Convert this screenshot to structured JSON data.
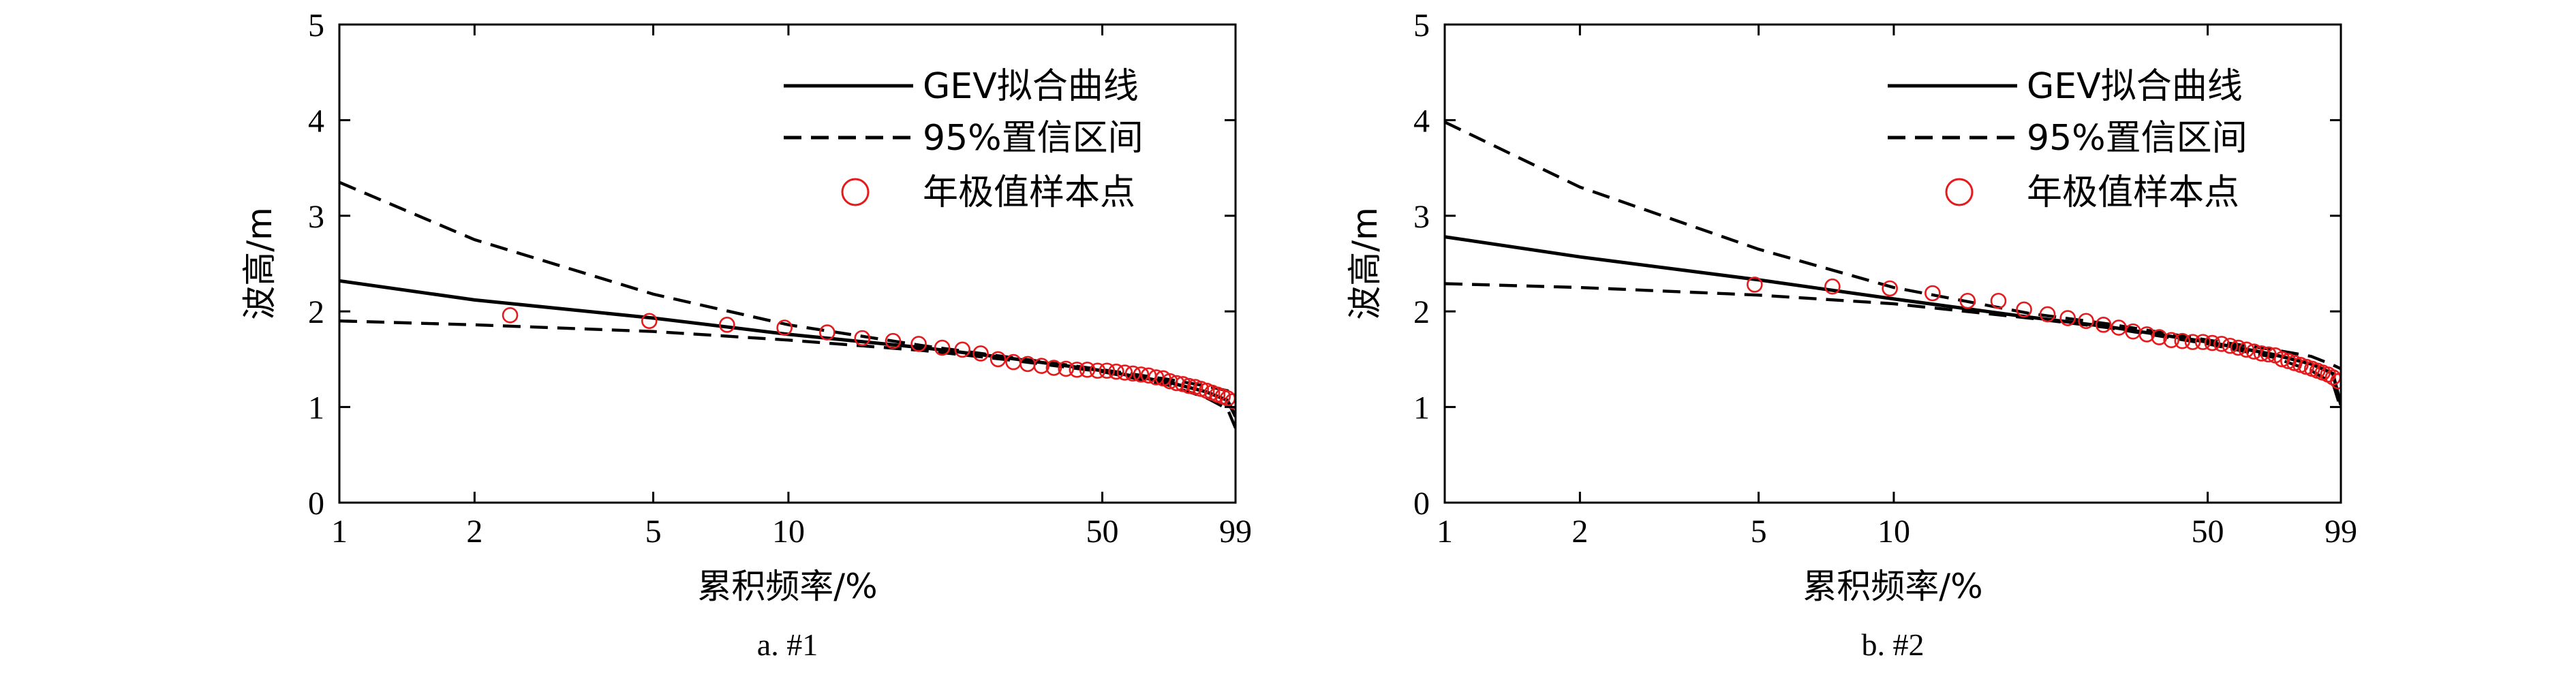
{
  "colors": {
    "axis": "#000000",
    "fit_line": "#000000",
    "ci_line": "#000000",
    "sample_marker": "#e41a1c"
  },
  "chart_data": [
    {
      "type": "line",
      "x_scale": "log",
      "caption": "a. #1",
      "xlabel": "累积频率/%",
      "ylabel": "波高/m",
      "xlim": [
        1,
        99
      ],
      "ylim": [
        0,
        5
      ],
      "xticks": [
        1,
        2,
        5,
        10,
        50,
        99
      ],
      "xtick_labels": [
        "1",
        "2",
        "5",
        "10",
        "50",
        "99"
      ],
      "yticks": [
        0,
        1,
        2,
        3,
        4,
        5
      ],
      "ytick_labels": [
        "0",
        "1",
        "2",
        "3",
        "4",
        "5"
      ],
      "grid": false,
      "legend_position": "top-right",
      "series": [
        {
          "name": "GEV拟合曲线",
          "style": "solid",
          "color": "#000000",
          "x": [
            1,
            2,
            5,
            10,
            20,
            30,
            50,
            70,
            85,
            95,
            99
          ],
          "y": [
            2.32,
            2.12,
            1.93,
            1.76,
            1.62,
            1.52,
            1.38,
            1.26,
            1.16,
            1.07,
            0.9
          ]
        },
        {
          "name": "95%置信区间",
          "style": "dashed",
          "color": "#000000",
          "x": [
            1,
            2,
            5,
            10,
            20,
            30,
            50,
            70,
            85,
            95,
            99
          ],
          "y": [
            3.35,
            2.75,
            2.18,
            1.86,
            1.64,
            1.53,
            1.39,
            1.29,
            1.22,
            1.17,
            1.1
          ]
        },
        {
          "name": "",
          "style": "dashed",
          "color": "#000000",
          "x": [
            1,
            2,
            5,
            10,
            20,
            30,
            50,
            70,
            85,
            95,
            99
          ],
          "y": [
            1.9,
            1.86,
            1.79,
            1.7,
            1.59,
            1.5,
            1.37,
            1.23,
            1.1,
            0.98,
            0.78
          ]
        },
        {
          "name": "年极值样本点",
          "style": "marker",
          "color": "#e41a1c",
          "x": [
            2.4,
            4.9,
            7.3,
            9.8,
            12.2,
            14.6,
            17.1,
            19.5,
            22,
            24.4,
            26.8,
            29.3,
            31.7,
            34.1,
            36.6,
            39,
            41.5,
            43.9,
            46.3,
            48.8,
            51.2,
            53.7,
            56.1,
            58.5,
            61,
            63.4,
            65.9,
            68.3,
            70.7,
            73.2,
            75.6,
            78,
            80.5,
            82.9,
            85.4,
            87.8,
            90.2,
            92.7,
            95.1,
            97.6
          ],
          "y": [
            1.96,
            1.9,
            1.86,
            1.83,
            1.78,
            1.72,
            1.69,
            1.66,
            1.62,
            1.6,
            1.56,
            1.5,
            1.47,
            1.45,
            1.43,
            1.41,
            1.4,
            1.39,
            1.39,
            1.38,
            1.38,
            1.37,
            1.36,
            1.35,
            1.34,
            1.33,
            1.31,
            1.3,
            1.27,
            1.25,
            1.24,
            1.22,
            1.21,
            1.19,
            1.17,
            1.15,
            1.13,
            1.11,
            1.09,
            1.06
          ]
        }
      ]
    },
    {
      "type": "line",
      "x_scale": "log",
      "caption": "b. #2",
      "xlabel": "累积频率/%",
      "ylabel": "波高/m",
      "xlim": [
        1,
        99
      ],
      "ylim": [
        0,
        5
      ],
      "xticks": [
        1,
        2,
        5,
        10,
        50,
        99
      ],
      "xtick_labels": [
        "1",
        "2",
        "5",
        "10",
        "50",
        "99"
      ],
      "yticks": [
        0,
        1,
        2,
        3,
        4,
        5
      ],
      "ytick_labels": [
        "0",
        "1",
        "2",
        "3",
        "4",
        "5"
      ],
      "grid": false,
      "legend_position": "top-right",
      "series": [
        {
          "name": "GEV拟合曲线",
          "style": "solid",
          "color": "#000000",
          "x": [
            1,
            2,
            5,
            10,
            20,
            30,
            50,
            70,
            85,
            95,
            99
          ],
          "y": [
            2.78,
            2.57,
            2.33,
            2.13,
            1.94,
            1.84,
            1.68,
            1.55,
            1.45,
            1.35,
            1.02
          ]
        },
        {
          "name": "95%置信区间",
          "style": "dashed",
          "color": "#000000",
          "x": [
            1,
            2,
            5,
            10,
            20,
            30,
            50,
            70,
            85,
            95,
            99
          ],
          "y": [
            3.98,
            3.3,
            2.65,
            2.25,
            1.98,
            1.87,
            1.7,
            1.6,
            1.53,
            1.44,
            1.4
          ]
        },
        {
          "name": "",
          "style": "dashed",
          "color": "#000000",
          "x": [
            1,
            2,
            5,
            10,
            20,
            30,
            50,
            70,
            85,
            95,
            99
          ],
          "y": [
            2.29,
            2.25,
            2.17,
            2.08,
            1.93,
            1.83,
            1.66,
            1.52,
            1.38,
            1.25,
            0.98
          ]
        },
        {
          "name": "年极值样本点",
          "style": "marker",
          "color": "#e41a1c",
          "x": [
            4.9,
            7.3,
            9.8,
            12.2,
            14.6,
            17.1,
            19.5,
            22,
            24.4,
            26.8,
            29.3,
            31.7,
            34.1,
            36.6,
            39,
            41.5,
            43.9,
            46.3,
            48.8,
            51.2,
            53.7,
            56.1,
            58.5,
            61,
            63.4,
            65.9,
            68.3,
            70.7,
            73.2,
            75.6,
            78,
            80.5,
            82.9,
            85.4,
            87.8,
            90.2,
            92.7,
            95.1,
            97.6
          ],
          "y": [
            2.28,
            2.26,
            2.24,
            2.19,
            2.11,
            2.11,
            2.02,
            1.97,
            1.93,
            1.9,
            1.86,
            1.83,
            1.79,
            1.76,
            1.73,
            1.7,
            1.69,
            1.68,
            1.68,
            1.67,
            1.66,
            1.64,
            1.62,
            1.6,
            1.58,
            1.56,
            1.55,
            1.54,
            1.5,
            1.48,
            1.46,
            1.44,
            1.42,
            1.4,
            1.38,
            1.36,
            1.34,
            1.31,
            1.27
          ]
        }
      ]
    }
  ]
}
